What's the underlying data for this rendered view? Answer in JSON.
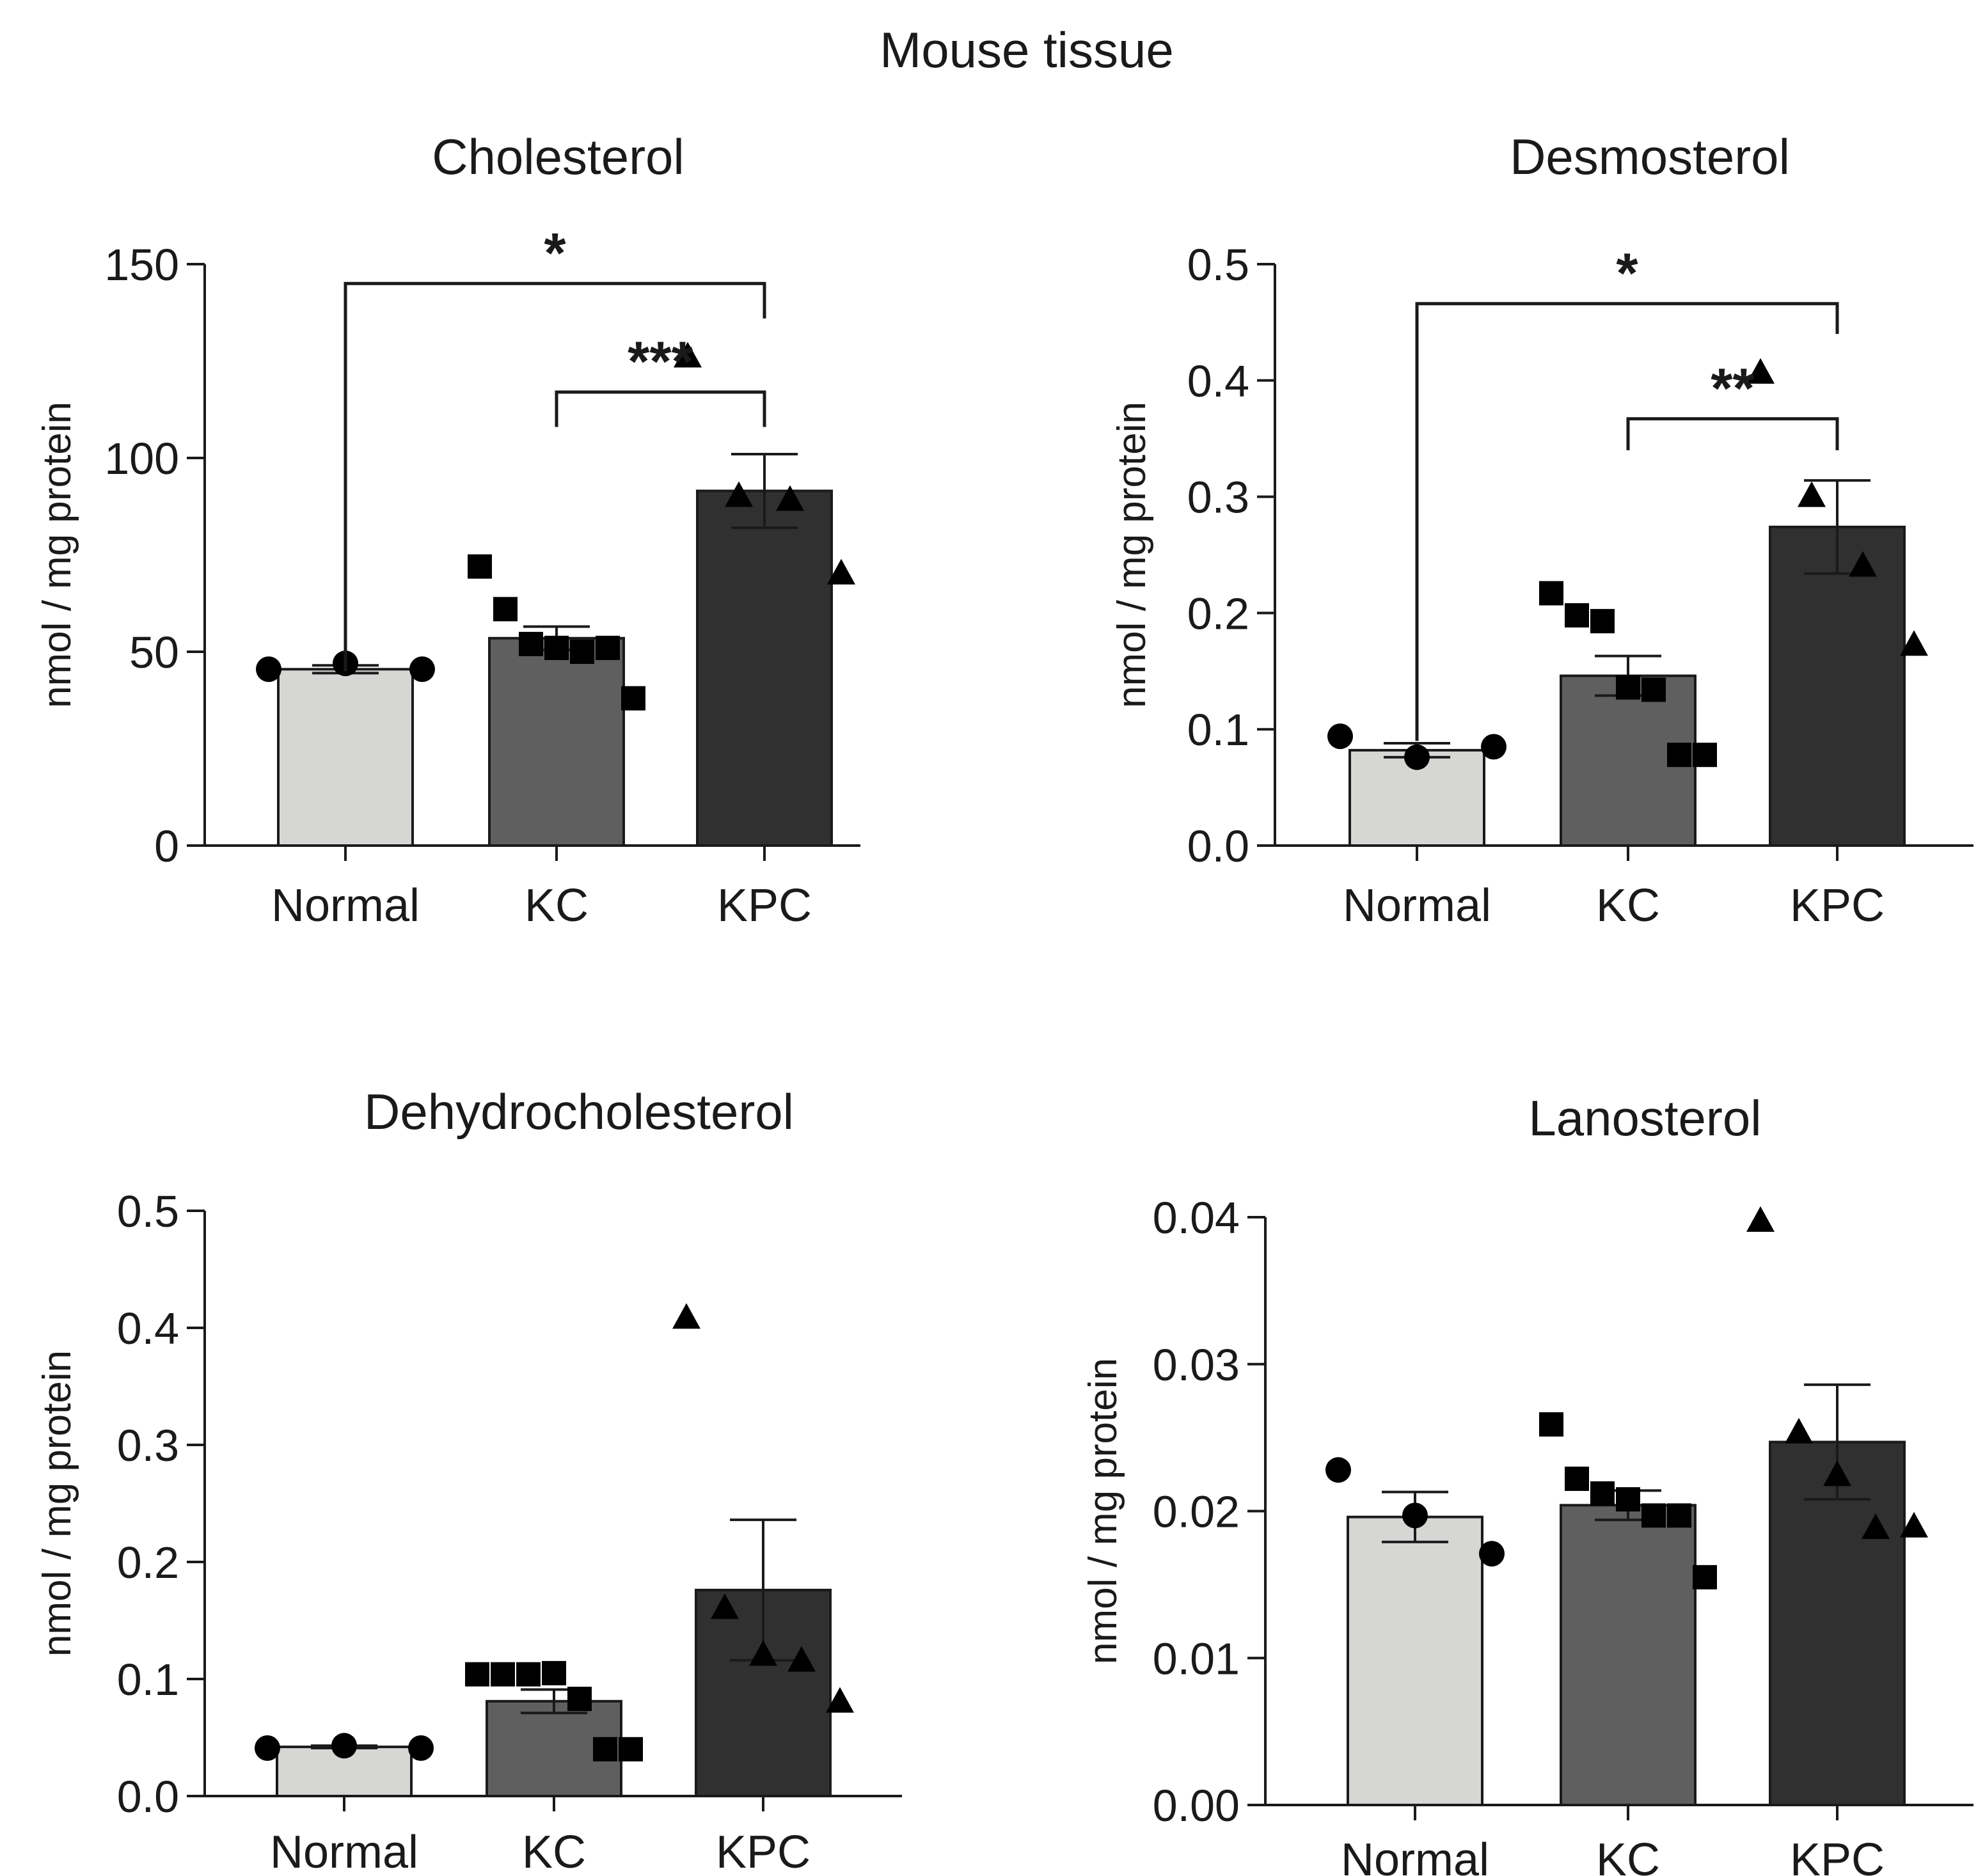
{
  "figure": {
    "title": "Mouse tissue"
  },
  "colors": {
    "Normal": "#d6d7d5",
    "KC": "#5f5f5f",
    "KPC": "#303030",
    "ink": "#1a1a1a"
  },
  "chart_data": [
    {
      "type": "bar",
      "title": "Cholesterol",
      "xlabel": "",
      "ylabel": "nmol / mg protein",
      "categories": [
        "Normal",
        "KC",
        "KPC"
      ],
      "markers": [
        "circle",
        "square",
        "triangle"
      ],
      "values": [
        45.5,
        53.5,
        91.5
      ],
      "sem": [
        1,
        3,
        9.5
      ],
      "points": [
        [
          45.5,
          47,
          45.5
        ],
        [
          72,
          61,
          52,
          51,
          50,
          51,
          38
        ],
        [
          126,
          90,
          89,
          70
        ]
      ],
      "yticks": [
        0,
        50,
        100,
        150
      ],
      "ytick_labels": [
        "0",
        "50",
        "100",
        "150"
      ],
      "ylim": [
        0,
        150
      ],
      "significance": [
        {
          "from": 0,
          "to": 2,
          "label": "*",
          "y": 145,
          "left_drop": 45,
          "right_drop": 136
        },
        {
          "from": 1,
          "to": 2,
          "label": "***",
          "y": 117,
          "left_drop": 108,
          "right_drop": 108
        }
      ],
      "grid": false
    },
    {
      "type": "bar",
      "title": "Desmosterol",
      "xlabel": "",
      "ylabel": "nmol / mg protein",
      "categories": [
        "Normal",
        "KC",
        "KPC"
      ],
      "markers": [
        "circle",
        "square",
        "triangle"
      ],
      "values": [
        0.082,
        0.146,
        0.274
      ],
      "sem": [
        0.006,
        0.017,
        0.04
      ],
      "points": [
        [
          0.094,
          0.076,
          0.085
        ],
        [
          0.217,
          0.198,
          0.193,
          0.136,
          0.134,
          0.078,
          0.078
        ],
        [
          0.406,
          0.3,
          0.24,
          0.172
        ]
      ],
      "yticks": [
        0,
        0.1,
        0.2,
        0.3,
        0.4,
        0.5
      ],
      "ytick_labels": [
        "0.0",
        "0.1",
        "0.2",
        "0.3",
        "0.4",
        "0.5"
      ],
      "ylim": [
        0,
        0.5
      ],
      "significance": [
        {
          "from": 0,
          "to": 2,
          "label": "*",
          "y": 0.466,
          "left_drop": 0.09,
          "right_drop": 0.44
        },
        {
          "from": 1,
          "to": 2,
          "label": "**",
          "y": 0.367,
          "left_drop": 0.34,
          "right_drop": 0.34
        }
      ],
      "grid": false
    },
    {
      "type": "bar",
      "title": "Dehydrocholesterol",
      "xlabel": "",
      "ylabel": "nmol / mg protein",
      "categories": [
        "Normal",
        "KC",
        "KPC"
      ],
      "markers": [
        "circle",
        "square",
        "triangle"
      ],
      "values": [
        0.042,
        0.081,
        0.176
      ],
      "sem": [
        0.001,
        0.01,
        0.06
      ],
      "points": [
        [
          0.041,
          0.043,
          0.041
        ],
        [
          0.104,
          0.104,
          0.104,
          0.105,
          0.083,
          0.04,
          0.04
        ],
        [
          0.408,
          0.16,
          0.12,
          0.115,
          0.08
        ]
      ],
      "yticks": [
        0,
        0.1,
        0.2,
        0.3,
        0.4,
        0.5
      ],
      "ytick_labels": [
        "0.0",
        "0.1",
        "0.2",
        "0.3",
        "0.4",
        "0.5"
      ],
      "ylim": [
        0,
        0.5
      ],
      "significance": [],
      "grid": false
    },
    {
      "type": "bar",
      "title": "Lanosterol",
      "xlabel": "",
      "ylabel": "nmol / mg protein",
      "categories": [
        "Normal",
        "KC",
        "KPC"
      ],
      "markers": [
        "circle",
        "square",
        "triangle"
      ],
      "values": [
        0.0196,
        0.0204,
        0.0247
      ],
      "sem": [
        0.0017,
        0.001,
        0.0039
      ],
      "points": [
        [
          0.0228,
          0.0197,
          0.0171
        ],
        [
          0.0259,
          0.0222,
          0.0212,
          0.0208,
          0.0197,
          0.0197,
          0.0155
        ],
        [
          0.0397,
          0.0253,
          0.0224,
          0.0188,
          0.0189
        ]
      ],
      "yticks": [
        0,
        0.01,
        0.02,
        0.03,
        0.04
      ],
      "ytick_labels": [
        "0.00",
        "0.01",
        "0.02",
        "0.03",
        "0.04"
      ],
      "ylim": [
        0,
        0.045
      ],
      "significance": [],
      "grid": false
    }
  ]
}
